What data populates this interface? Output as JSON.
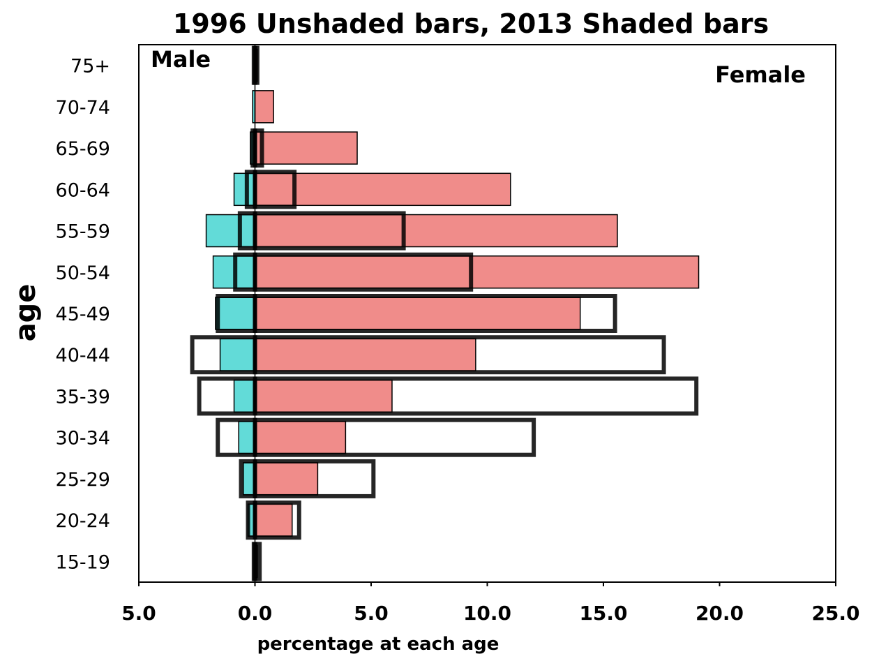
{
  "chart_data": {
    "type": "bar",
    "orientation": "horizontal",
    "title": "1996 Unshaded bars, 2013 Shaded bars",
    "xlabel": "percentage at each age",
    "ylabel": "age",
    "xlim": [
      -5,
      25
    ],
    "xticks": [
      -5,
      0,
      5,
      10,
      15,
      20,
      25
    ],
    "xtick_labels": [
      "5.0",
      "0.0",
      "5.0",
      "10.0",
      "15.0",
      "20.0",
      "25.0"
    ],
    "categories": [
      "75+",
      "70-74",
      "65-69",
      "60-64",
      "55-59",
      "50-54",
      "45-49",
      "40-44",
      "35-39",
      "30-34",
      "25-29",
      "20-24",
      "15-19"
    ],
    "series": [
      {
        "name": "Male",
        "year": "2013",
        "style": "shaded",
        "color": "#62dbd8",
        "values": [
          0.0,
          0.1,
          0.2,
          0.9,
          2.1,
          1.8,
          1.7,
          1.5,
          0.9,
          0.7,
          0.5,
          0.3,
          0.0
        ]
      },
      {
        "name": "Female",
        "year": "2013",
        "style": "shaded",
        "color": "#f08c8a",
        "values": [
          0.1,
          0.8,
          4.4,
          11.0,
          15.6,
          19.1,
          14.0,
          9.5,
          5.9,
          3.9,
          2.7,
          1.6,
          0.1
        ]
      },
      {
        "name": "Male",
        "year": "1996",
        "style": "unshaded",
        "color": "#000000",
        "values": [
          0.05,
          0.0,
          0.1,
          0.35,
          0.65,
          0.85,
          1.6,
          2.7,
          2.4,
          1.6,
          0.6,
          0.3,
          0.05
        ]
      },
      {
        "name": "Female",
        "year": "1996",
        "style": "unshaded",
        "color": "#000000",
        "values": [
          0.1,
          0.0,
          0.3,
          1.7,
          6.4,
          9.3,
          15.5,
          17.6,
          19.0,
          12.0,
          5.1,
          1.9,
          0.2
        ]
      }
    ],
    "annotations": [
      "Male",
      "Female"
    ],
    "grid": false
  }
}
